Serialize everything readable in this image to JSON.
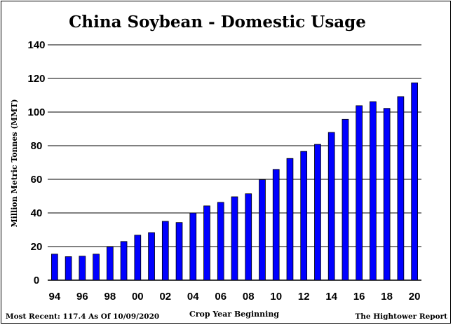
{
  "chart_data": {
    "type": "bar",
    "title": "China Soybean - Domestic Usage",
    "xlabel": "Crop Year Beginning",
    "ylabel": "Million Metric Tonnes (MMT)",
    "ylim": [
      0,
      140
    ],
    "yticks": [
      "0",
      "20",
      "40",
      "60",
      "80",
      "100",
      "120",
      "140"
    ],
    "grid": true,
    "bar_color": "#0000ff",
    "categories": [
      "94",
      "95",
      "96",
      "97",
      "98",
      "99",
      "00",
      "01",
      "02",
      "03",
      "04",
      "05",
      "06",
      "07",
      "08",
      "09",
      "10",
      "11",
      "12",
      "13",
      "14",
      "15",
      "16",
      "17",
      "18",
      "19",
      "20"
    ],
    "xtick_labels": [
      "94",
      "",
      "96",
      "",
      "98",
      "",
      "00",
      "",
      "02",
      "",
      "04",
      "",
      "06",
      "",
      "08",
      "",
      "10",
      "",
      "12",
      "",
      "14",
      "",
      "16",
      "",
      "18",
      "",
      "20"
    ],
    "values": [
      15.5,
      14,
      14.3,
      15.5,
      19.8,
      23,
      26.8,
      28.3,
      35,
      34.3,
      40,
      44.2,
      46.3,
      49.6,
      51.4,
      59.8,
      65.9,
      72.4,
      76.6,
      80.8,
      87.9,
      95.7,
      103.8,
      106.2,
      102.2,
      109.2,
      117.4
    ]
  },
  "footer": {
    "left": "Most Recent: 117.4 As Of 10/09/2020",
    "right": "The Hightower Report"
  }
}
